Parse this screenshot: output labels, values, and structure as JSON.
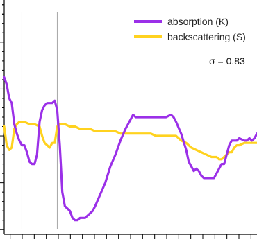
{
  "chart_data": {
    "type": "line",
    "title": "",
    "xlabel": "",
    "ylabel": "",
    "xlim": [
      0,
      100
    ],
    "ylim": [
      0,
      100
    ],
    "grid": false,
    "legend_position": "top-right",
    "annotation": "σ = 0.83",
    "reference_lines_x": [
      7,
      21
    ],
    "x_tick_count": 21,
    "y_major_ticks": [
      2,
      22,
      42,
      62,
      82
    ],
    "series": [
      {
        "name": "absorption (K)",
        "color": "#9b30e8",
        "points": [
          [
            0,
            67
          ],
          [
            1,
            64
          ],
          [
            2,
            58
          ],
          [
            3,
            56
          ],
          [
            4,
            47
          ],
          [
            5,
            43
          ],
          [
            6,
            40
          ],
          [
            7,
            38
          ],
          [
            8,
            38
          ],
          [
            9,
            35
          ],
          [
            10,
            31
          ],
          [
            11,
            30
          ],
          [
            12,
            30
          ],
          [
            13,
            34
          ],
          [
            14,
            48
          ],
          [
            15,
            53
          ],
          [
            16,
            55
          ],
          [
            17,
            56
          ],
          [
            18,
            56
          ],
          [
            19,
            56
          ],
          [
            20,
            57
          ],
          [
            21,
            53
          ],
          [
            22,
            38
          ],
          [
            23,
            18
          ],
          [
            24,
            12
          ],
          [
            25,
            11
          ],
          [
            26,
            10
          ],
          [
            27,
            7
          ],
          [
            28,
            6
          ],
          [
            29,
            6
          ],
          [
            30,
            7
          ],
          [
            31,
            7
          ],
          [
            32,
            7
          ],
          [
            33,
            8
          ],
          [
            34,
            9
          ],
          [
            35,
            10
          ],
          [
            36,
            12
          ],
          [
            38,
            17
          ],
          [
            40,
            22
          ],
          [
            42,
            29
          ],
          [
            44,
            34
          ],
          [
            46,
            40
          ],
          [
            48,
            45
          ],
          [
            50,
            49
          ],
          [
            51,
            51
          ],
          [
            52,
            50
          ],
          [
            53,
            50
          ],
          [
            55,
            50
          ],
          [
            58,
            50
          ],
          [
            61,
            50
          ],
          [
            64,
            50
          ],
          [
            66,
            51
          ],
          [
            67,
            50
          ],
          [
            68,
            48
          ],
          [
            70,
            43
          ],
          [
            72,
            36
          ],
          [
            73,
            31
          ],
          [
            74,
            29
          ],
          [
            75,
            27
          ],
          [
            76,
            28
          ],
          [
            77,
            27
          ],
          [
            78,
            25
          ],
          [
            79,
            24
          ],
          [
            80,
            24
          ],
          [
            82,
            24
          ],
          [
            83,
            24
          ],
          [
            84,
            26
          ],
          [
            85,
            28
          ],
          [
            86,
            30
          ],
          [
            87,
            30
          ],
          [
            88,
            34
          ],
          [
            89,
            38
          ],
          [
            90,
            40
          ],
          [
            91,
            40
          ],
          [
            92,
            40
          ],
          [
            93,
            41
          ],
          [
            95,
            40
          ],
          [
            96,
            40
          ],
          [
            97,
            41
          ],
          [
            98,
            40
          ],
          [
            99,
            41
          ],
          [
            100,
            43
          ]
        ]
      },
      {
        "name": "backscattering (S)",
        "color": "#ffd21f",
        "points": [
          [
            0,
            46
          ],
          [
            1,
            38
          ],
          [
            2,
            36
          ],
          [
            3,
            37
          ],
          [
            4,
            45
          ],
          [
            5,
            47
          ],
          [
            6,
            48
          ],
          [
            7,
            48
          ],
          [
            8,
            48
          ],
          [
            10,
            47
          ],
          [
            12,
            47
          ],
          [
            14,
            46
          ],
          [
            15,
            42
          ],
          [
            16,
            39
          ],
          [
            17,
            38
          ],
          [
            18,
            37
          ],
          [
            19,
            39
          ],
          [
            20,
            39
          ],
          [
            21,
            46
          ],
          [
            22,
            47
          ],
          [
            24,
            47
          ],
          [
            26,
            46
          ],
          [
            28,
            46
          ],
          [
            30,
            45
          ],
          [
            32,
            45
          ],
          [
            34,
            45
          ],
          [
            36,
            44
          ],
          [
            38,
            44
          ],
          [
            40,
            44
          ],
          [
            42,
            44
          ],
          [
            44,
            44
          ],
          [
            46,
            43
          ],
          [
            48,
            43
          ],
          [
            50,
            43
          ],
          [
            52,
            43
          ],
          [
            54,
            43
          ],
          [
            56,
            43
          ],
          [
            58,
            43
          ],
          [
            60,
            42
          ],
          [
            62,
            42
          ],
          [
            64,
            42
          ],
          [
            66,
            42
          ],
          [
            68,
            42
          ],
          [
            70,
            40
          ],
          [
            72,
            39
          ],
          [
            74,
            37
          ],
          [
            76,
            36
          ],
          [
            78,
            35
          ],
          [
            80,
            34
          ],
          [
            82,
            33
          ],
          [
            84,
            33
          ],
          [
            85,
            32
          ],
          [
            86,
            32
          ],
          [
            88,
            34
          ],
          [
            89,
            35
          ],
          [
            90,
            35
          ],
          [
            91,
            37
          ],
          [
            92,
            38
          ],
          [
            93,
            38
          ],
          [
            95,
            39
          ],
          [
            97,
            39
          ],
          [
            98,
            39
          ],
          [
            99,
            39
          ],
          [
            100,
            39
          ]
        ]
      }
    ]
  }
}
